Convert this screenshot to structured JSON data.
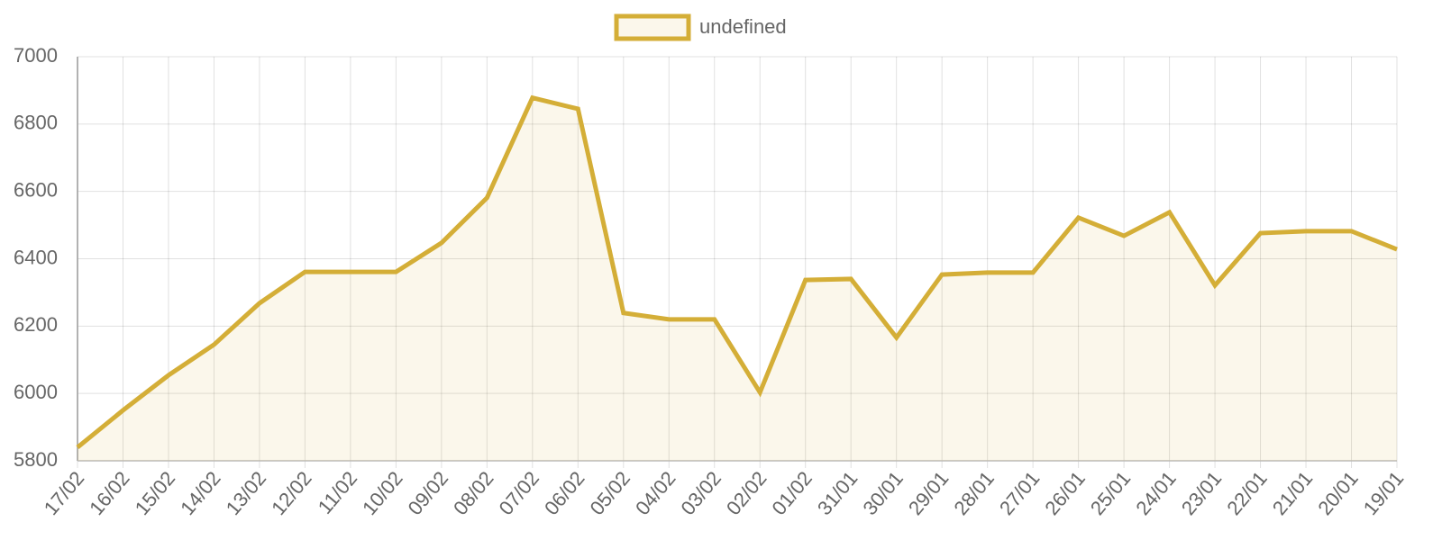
{
  "chart_data": {
    "type": "line",
    "categories": [
      "17/02",
      "16/02",
      "15/02",
      "14/02",
      "13/02",
      "12/02",
      "11/02",
      "10/02",
      "09/02",
      "08/02",
      "07/02",
      "06/02",
      "05/02",
      "04/02",
      "03/02",
      "02/02",
      "01/02",
      "31/01",
      "30/01",
      "29/01",
      "28/01",
      "27/01",
      "26/01",
      "25/01",
      "24/01",
      "23/01",
      "22/01",
      "21/01",
      "20/01",
      "19/01"
    ],
    "series": [
      {
        "name": "undefined",
        "color": "#d4ae37",
        "values": [
          5840,
          5950,
          6054,
          6145,
          6268,
          6361,
          6361,
          6361,
          6447,
          6581,
          6878,
          6845,
          6239,
          6220,
          6220,
          6003,
          6337,
          6340,
          6166,
          6353,
          6359,
          6359,
          6522,
          6468,
          6538,
          6321,
          6476,
          6482,
          6482,
          6428
        ]
      }
    ],
    "ylim": [
      5800,
      7000
    ],
    "yticks": [
      5800,
      6000,
      6200,
      6400,
      6600,
      6800,
      7000
    ],
    "grid": true,
    "legend": "top",
    "fill": true
  }
}
